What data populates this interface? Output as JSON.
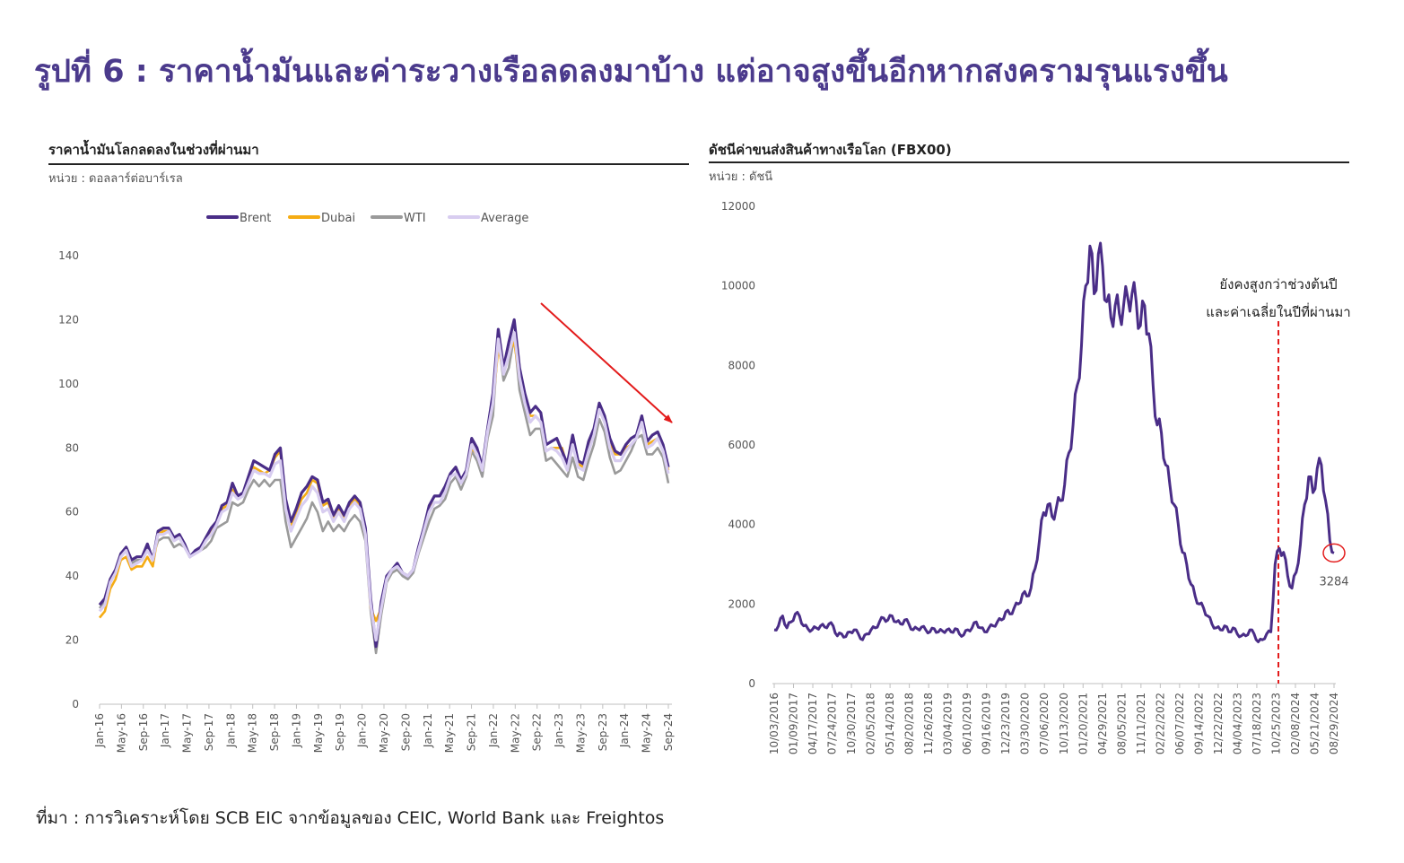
{
  "page": {
    "title": "รูปที่ 6 : ราคาน้ำมันและค่าระวางเรือลดลงมาบ้าง แต่อาจสูงขึ้นอีกหากสงครามรุนแรงขึ้น",
    "source": "ที่มา : การวิเคราะห์โดย SCB EIC จากข้อมูลของ CEIC, World Bank และ Freightos"
  },
  "colors": {
    "title": "#4b3a8c",
    "brent": "#4a2d87",
    "dubai": "#f5ac14",
    "wti": "#9a9a9a",
    "average": "#d8cdf0",
    "fbx": "#4a2d87",
    "annotation": "#e31b1b"
  },
  "oil_panel": {
    "title": "ราคาน้ำมันโลกลดลงในช่วงที่ผ่านมา",
    "unit": "หน่วย : ดอลลาร์ต่อบาร์เรล"
  },
  "fbx_panel": {
    "title": "ดัชนีค่าขนส่งสินค้าทางเรือโลก  (FBX00)",
    "unit": "หน่วย : ดัชนี"
  },
  "chart_data": [
    {
      "type": "line",
      "title": "ราคาน้ำมันโลกลดลงในช่วงที่ผ่านมา",
      "ylabel": "ดอลลาร์ต่อบาร์เรล",
      "ylim": [
        0,
        140
      ],
      "yticks": [
        0,
        20,
        40,
        60,
        80,
        100,
        120,
        140
      ],
      "x_tick_labels": [
        "Jan-16",
        "May-16",
        "Sep-16",
        "Jan-17",
        "May-17",
        "Sep-17",
        "Jan-18",
        "May-18",
        "Sep-18",
        "Jan-19",
        "May-19",
        "Sep-19",
        "Jan-20",
        "May-20",
        "Sep-20",
        "Jan-21",
        "May-21",
        "Sep-21",
        "Jan-22",
        "May-22",
        "Sep-22",
        "Jan-23",
        "May-23",
        "Sep-23",
        "Jan-24",
        "May-24",
        "Sep-24"
      ],
      "legend": [
        "Brent",
        "Dubai",
        "WTI",
        "Average"
      ],
      "legend_position": "top",
      "annotation": "downward trend arrow",
      "series": [
        {
          "name": "Brent",
          "values": [
            31,
            33,
            39,
            42,
            47,
            49,
            45,
            46,
            46,
            50,
            45,
            54,
            55,
            55,
            52,
            53,
            50,
            46,
            48,
            49,
            52,
            55,
            57,
            62,
            63,
            69,
            65,
            66,
            71,
            76,
            75,
            74,
            73,
            78,
            80,
            64,
            57,
            61,
            66,
            68,
            71,
            70,
            63,
            64,
            59,
            62,
            59,
            63,
            65,
            63,
            55,
            33,
            18,
            32,
            40,
            42,
            44,
            41,
            40,
            42,
            49,
            55,
            62,
            65,
            65,
            68,
            72,
            74,
            70,
            73,
            83,
            80,
            74,
            86,
            97,
            117,
            105,
            113,
            120,
            105,
            97,
            91,
            93,
            91,
            81,
            82,
            83,
            79,
            75,
            84,
            76,
            75,
            82,
            86,
            94,
            90,
            83,
            79,
            78,
            81,
            83,
            84,
            90,
            82,
            84,
            85,
            81,
            74
          ]
        },
        {
          "name": "Dubai",
          "values": [
            27,
            29,
            36,
            39,
            45,
            46,
            42,
            43,
            43,
            46,
            43,
            53,
            54,
            54,
            51,
            52,
            49,
            46,
            47,
            48,
            51,
            54,
            56,
            61,
            62,
            67,
            64,
            66,
            70,
            74,
            73,
            72,
            73,
            77,
            79,
            62,
            56,
            60,
            64,
            66,
            70,
            69,
            62,
            63,
            58,
            61,
            58,
            62,
            64,
            62,
            54,
            30,
            26,
            30,
            40,
            42,
            43,
            41,
            40,
            42,
            49,
            55,
            61,
            63,
            63,
            66,
            71,
            72,
            69,
            72,
            80,
            78,
            73,
            85,
            94,
            111,
            104,
            110,
            113,
            102,
            95,
            90,
            90,
            88,
            79,
            80,
            80,
            80,
            74,
            83,
            75,
            74,
            80,
            84,
            92,
            88,
            81,
            78,
            78,
            80,
            81,
            83,
            90,
            81,
            82,
            83,
            80,
            73
          ]
        },
        {
          "name": "WTI",
          "values": [
            30,
            32,
            38,
            41,
            46,
            48,
            44,
            45,
            45,
            49,
            46,
            51,
            52,
            52,
            49,
            50,
            49,
            46,
            47,
            48,
            49,
            51,
            55,
            56,
            57,
            63,
            62,
            63,
            67,
            70,
            68,
            70,
            68,
            70,
            70,
            57,
            49,
            52,
            55,
            58,
            63,
            60,
            54,
            57,
            54,
            56,
            54,
            57,
            59,
            57,
            51,
            29,
            16,
            28,
            38,
            41,
            42,
            40,
            39,
            41,
            47,
            52,
            57,
            61,
            62,
            64,
            69,
            71,
            67,
            71,
            79,
            76,
            71,
            83,
            90,
            114,
            101,
            105,
            115,
            98,
            91,
            84,
            86,
            86,
            76,
            77,
            75,
            73,
            71,
            77,
            71,
            70,
            76,
            81,
            89,
            85,
            77,
            72,
            73,
            76,
            79,
            83,
            84,
            78,
            78,
            80,
            77,
            69
          ]
        },
        {
          "name": "Average",
          "values": [
            29,
            31,
            38,
            41,
            46,
            48,
            43,
            44,
            45,
            48,
            45,
            53,
            53,
            54,
            51,
            52,
            49,
            46,
            47,
            48,
            51,
            53,
            56,
            60,
            61,
            66,
            64,
            65,
            69,
            73,
            72,
            72,
            71,
            75,
            76,
            61,
            54,
            58,
            62,
            64,
            68,
            66,
            60,
            61,
            57,
            60,
            57,
            61,
            63,
            61,
            53,
            31,
            20,
            30,
            39,
            42,
            43,
            41,
            40,
            42,
            48,
            54,
            60,
            63,
            63,
            66,
            71,
            72,
            69,
            72,
            81,
            78,
            73,
            85,
            94,
            114,
            103,
            109,
            116,
            102,
            94,
            88,
            90,
            88,
            79,
            80,
            79,
            77,
            73,
            81,
            74,
            73,
            79,
            84,
            92,
            88,
            80,
            76,
            76,
            79,
            81,
            83,
            88,
            80,
            81,
            83,
            79,
            72
          ]
        }
      ]
    },
    {
      "type": "line",
      "title": "ดัชนีค่าขนส่งสินค้าทางเรือโลก  (FBX00)",
      "ylabel": "ดัชนี",
      "ylim": [
        0,
        12000
      ],
      "yticks": [
        0,
        2000,
        4000,
        6000,
        8000,
        10000,
        12000
      ],
      "x_tick_labels": [
        "10/03/2016",
        "01/09/2017",
        "04/17/2017",
        "07/24/2017",
        "10/30/2017",
        "02/05/2018",
        "05/14/2018",
        "08/20/2018",
        "11/26/2018",
        "03/04/2019",
        "06/10/2019",
        "09/16/2019",
        "12/23/2019",
        "03/30/2020",
        "07/06/2020",
        "10/13/2020",
        "01/20/2021",
        "04/29/2021",
        "08/05/2021",
        "11/11/2021",
        "02/22/2022",
        "06/07/2022",
        "09/14/2022",
        "12/22/2022",
        "04/04/2023",
        "07/18/2023",
        "10/25/2023",
        "02/08/2024",
        "05/21/2024",
        "08/29/2024"
      ],
      "series": [
        {
          "name": "FBX00",
          "values": [
            1350,
            1450,
            1700,
            1400,
            1550,
            1750,
            1700,
            1450,
            1380,
            1350,
            1400,
            1450,
            1420,
            1500,
            1450,
            1200,
            1250,
            1180,
            1300,
            1350,
            1250,
            1100,
            1250,
            1350,
            1400,
            1550,
            1650,
            1600,
            1700,
            1550,
            1500,
            1600,
            1500,
            1350,
            1380,
            1420,
            1350,
            1300,
            1380,
            1300,
            1320,
            1350,
            1300,
            1380,
            1250,
            1220,
            1350,
            1400,
            1550,
            1400,
            1300,
            1400,
            1450,
            1550,
            1600,
            1800,
            1750,
            1900,
            2000,
            2250,
            2200,
            2400,
            2900,
            3600,
            4300,
            4500,
            4200,
            4400,
            4600,
            5000,
            5800,
            6500,
            7500,
            8500,
            10000,
            11000,
            9800,
            10800,
            10500,
            9600,
            9200,
            9500,
            9300,
            9500,
            9700,
            9800,
            9600,
            9000,
            9500,
            8800,
            7500,
            6500,
            6300,
            5500,
            5000,
            4500,
            4000,
            3300,
            3000,
            2500,
            2200,
            2000,
            1900,
            1700,
            1500,
            1400,
            1350,
            1450,
            1300,
            1400,
            1250,
            1200,
            1200,
            1350,
            1250,
            1050,
            1100,
            1250,
            1300,
            3000,
            3400,
            3300,
            2700,
            2400,
            2800,
            3500,
            4500,
            5200,
            4800,
            5400,
            5500,
            4600,
            3600,
            3284
          ]
        }
      ],
      "annotation": "ยังคงสูงกว่าช่วงต้นปี\nและค่าเฉลี่ยในปีที่ผ่านมา",
      "annotation_line1": "ยังคงสูงกว่าช่วงต้นปี",
      "annotation_line2": "และค่าเฉลี่ยในปีที่ผ่านมา",
      "latest_value_label": "3284"
    }
  ]
}
